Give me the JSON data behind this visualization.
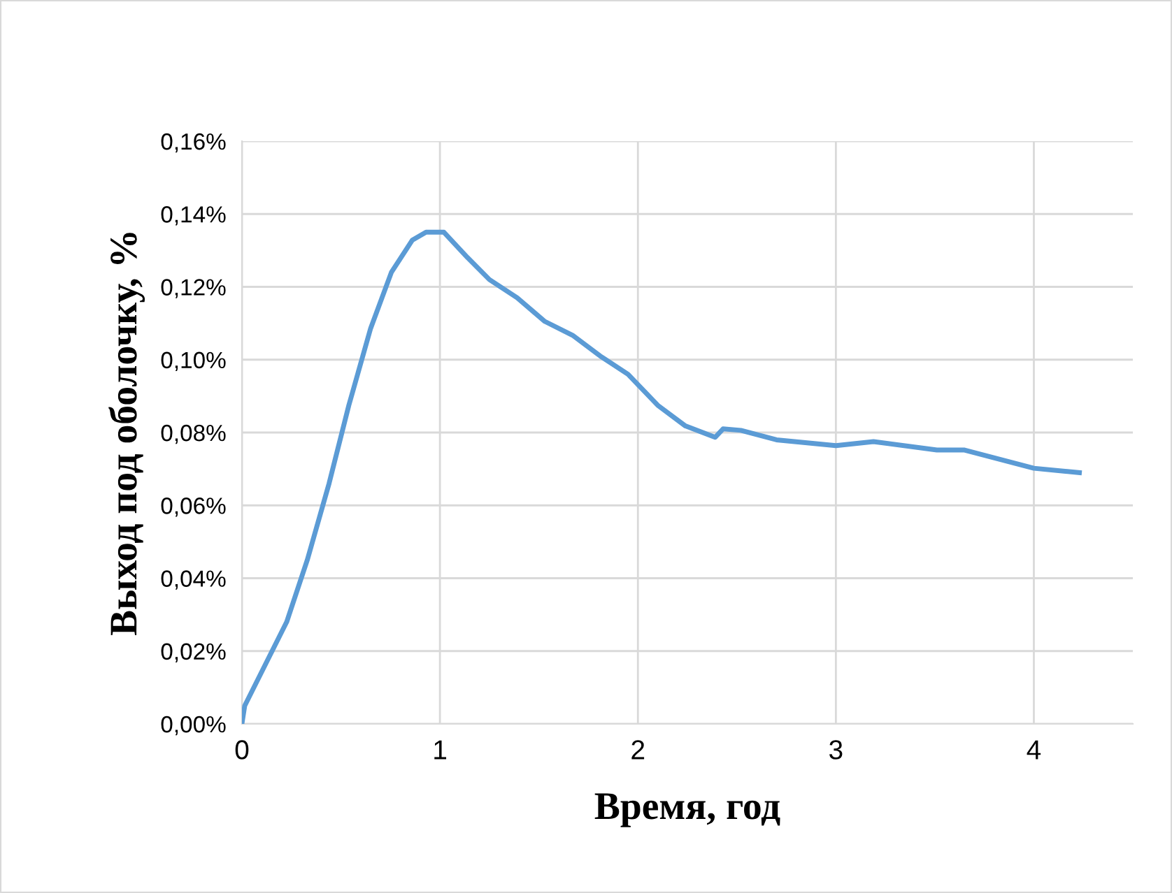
{
  "chart_data": {
    "type": "line",
    "xlabel": "Время, год",
    "ylabel": "Выход под оболочку, %",
    "xlim": [
      0,
      4.5
    ],
    "xticks": [
      0,
      1,
      2,
      3,
      4
    ],
    "ylim": [
      0,
      0.16
    ],
    "yticks": [
      {
        "value": 0,
        "label": "0,00%"
      },
      {
        "value": 0.02,
        "label": "0,02%"
      },
      {
        "value": 0.04,
        "label": "0,04%"
      },
      {
        "value": 0.06,
        "label": "0,06%"
      },
      {
        "value": 0.08,
        "label": "0,08%"
      },
      {
        "value": 0.1,
        "label": "0,10%"
      },
      {
        "value": 0.12,
        "label": "0,12%"
      },
      {
        "value": 0.14,
        "label": "0,14%"
      },
      {
        "value": 0.16,
        "label": "0,16%"
      }
    ],
    "grid": true,
    "marker": "none",
    "line_style": "solid",
    "series": [
      {
        "color": "#5b9bd5",
        "x": [
          0,
          0.014,
          0.12,
          0.226,
          0.33,
          0.44,
          0.54,
          0.65,
          0.755,
          0.86,
          0.93,
          1.02,
          1.14,
          1.25,
          1.39,
          1.53,
          1.67,
          1.81,
          1.95,
          2.1,
          2.24,
          2.39,
          2.43,
          2.52,
          2.7,
          3.0,
          3.19,
          3.51,
          3.65,
          4.0,
          4.23
        ],
        "values": [
          0.0001,
          0.005,
          0.0165,
          0.028,
          0.045,
          0.066,
          0.0875,
          0.1086,
          0.124,
          0.1328,
          0.135,
          0.135,
          0.128,
          0.122,
          0.117,
          0.1105,
          0.1067,
          0.101,
          0.096,
          0.0875,
          0.0818,
          0.0787,
          0.081,
          0.0806,
          0.078,
          0.0764,
          0.0775,
          0.0752,
          0.0752,
          0.0702,
          0.069
        ]
      }
    ]
  }
}
